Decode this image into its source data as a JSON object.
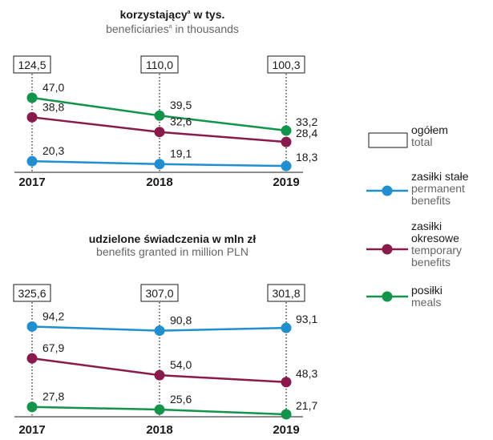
{
  "charts": {
    "top": {
      "title": "korzystający",
      "title_sup": "a",
      "title_rest": " w tys.",
      "subtitle": "beneficiaries",
      "subtitle_sup": "a",
      "subtitle_rest": " in thousands"
    },
    "bottom": {
      "title": "udzielone świadczenia w mln zł",
      "subtitle": "benefits granted in million PLN"
    }
  },
  "legend": {
    "total_pl": "ogółem",
    "total_en": "total",
    "permanent_pl": "zasiłki stałe",
    "permanent_en": "permanent benefits",
    "temporary_pl": "zasiłki okresowe",
    "temporary_en": "temporary benefits",
    "meals_pl": "posiłki",
    "meals_en": "meals"
  },
  "colors": {
    "permanent": "#1f8fd0",
    "temporary": "#8a1a4b",
    "meals": "#12944a"
  },
  "chart_data": [
    {
      "type": "line",
      "title": "korzystający w tys.",
      "subtitle": "beneficiaries in thousands",
      "x": [
        "2017",
        "2018",
        "2019"
      ],
      "totals": [
        "124,5",
        "110,0",
        "100,3"
      ],
      "series": [
        {
          "key": "meals",
          "name": "posiłki / meals",
          "values": [
            47.0,
            39.5,
            33.2
          ],
          "labels": [
            "47,0",
            "39,5",
            "33,2"
          ]
        },
        {
          "key": "temporary",
          "name": "zasiłki okresowe / temporary benefits",
          "values": [
            38.8,
            32.6,
            28.4
          ],
          "labels": [
            "38,8",
            "32,6",
            "28,4"
          ]
        },
        {
          "key": "permanent",
          "name": "zasiłki stałe / permanent benefits",
          "values": [
            20.3,
            19.1,
            18.3
          ],
          "labels": [
            "20,3",
            "19,1",
            "18,3"
          ]
        }
      ]
    },
    {
      "type": "line",
      "title": "udzielone świadczenia w mln zł",
      "subtitle": "benefits granted in million PLN",
      "x": [
        "2017",
        "2018",
        "2019"
      ],
      "totals": [
        "325,6",
        "307,0",
        "301,8"
      ],
      "series": [
        {
          "key": "permanent",
          "name": "zasiłki stałe / permanent benefits",
          "values": [
            94.2,
            90.8,
            93.1
          ],
          "labels": [
            "94,2",
            "90,8",
            "93,1"
          ]
        },
        {
          "key": "temporary",
          "name": "zasiłki okresowe / temporary benefits",
          "values": [
            67.9,
            54.0,
            48.3
          ],
          "labels": [
            "67,9",
            "54,0",
            "48,3"
          ]
        },
        {
          "key": "meals",
          "name": "posiłki / meals",
          "values": [
            27.8,
            25.6,
            21.7
          ],
          "labels": [
            "27,8",
            "25,6",
            "21,7"
          ]
        }
      ]
    }
  ]
}
